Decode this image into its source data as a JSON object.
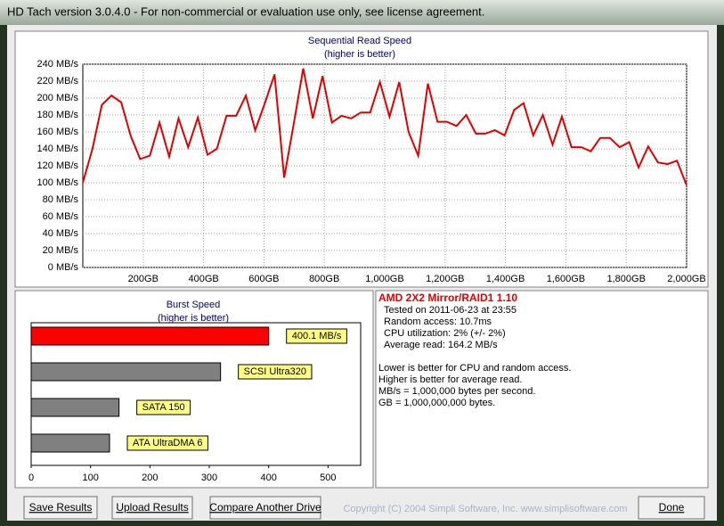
{
  "window_title": "HD Tach version 3.0.4.0  - For non-commercial or evaluation use only, see license agreement.",
  "chart_data": [
    {
      "type": "line",
      "title": "Sequential Read Speed",
      "subtitle": "(higher is better)",
      "color": "#e00000",
      "x": [
        0,
        32,
        63,
        95,
        127,
        159,
        190,
        222,
        254,
        286,
        317,
        349,
        381,
        413,
        444,
        476,
        508,
        540,
        571,
        603,
        635,
        667,
        698,
        730,
        762,
        794,
        825,
        857,
        889,
        921,
        952,
        984,
        1016,
        1048,
        1079,
        1111,
        1143,
        1175,
        1206,
        1238,
        1270,
        1302,
        1333,
        1365,
        1397,
        1429,
        1460,
        1492,
        1524,
        1556,
        1587,
        1619,
        1651,
        1683,
        1714,
        1746,
        1778,
        1810,
        1841,
        1873,
        1905,
        1937,
        1968,
        2000
      ],
      "values": [
        100,
        140,
        192,
        203,
        195,
        155,
        128,
        132,
        171,
        131,
        176,
        142,
        177,
        133,
        140,
        179,
        179,
        203,
        162,
        194,
        228,
        106,
        168,
        235,
        176,
        226,
        171,
        179,
        176,
        183,
        183,
        219,
        178,
        219,
        160,
        132,
        217,
        172,
        172,
        167,
        180,
        158,
        158,
        162,
        156,
        186,
        194,
        156,
        180,
        145,
        178,
        142,
        142,
        137,
        153,
        153,
        142,
        148,
        118,
        143,
        124,
        122,
        126,
        97
      ],
      "xlim": [
        0,
        2000
      ],
      "xticks": [
        {
          "value": 200,
          "label": "200GB"
        },
        {
          "value": 400,
          "label": "400GB"
        },
        {
          "value": 600,
          "label": "600GB"
        },
        {
          "value": 800,
          "label": "800GB"
        },
        {
          "value": 1000,
          "label": "1,000GB"
        },
        {
          "value": 1200,
          "label": "1,200GB"
        },
        {
          "value": 1400,
          "label": "1,400GB"
        },
        {
          "value": 1600,
          "label": "1,600GB"
        },
        {
          "value": 1800,
          "label": "1,800GB"
        },
        {
          "value": 2000,
          "label": "2,000GB"
        }
      ],
      "ylim": [
        0,
        240
      ],
      "yticks": [
        {
          "value": 0,
          "label": "0 MB/s"
        },
        {
          "value": 20,
          "label": "20 MB/s"
        },
        {
          "value": 40,
          "label": "40 MB/s"
        },
        {
          "value": 60,
          "label": "60 MB/s"
        },
        {
          "value": 80,
          "label": "80 MB/s"
        },
        {
          "value": 100,
          "label": "100 MB/s"
        },
        {
          "value": 120,
          "label": "120 MB/s"
        },
        {
          "value": 140,
          "label": "140 MB/s"
        },
        {
          "value": 160,
          "label": "160 MB/s"
        },
        {
          "value": 180,
          "label": "180 MB/s"
        },
        {
          "value": 200,
          "label": "200 MB/s"
        },
        {
          "value": 220,
          "label": "220 MB/s"
        },
        {
          "value": 240,
          "label": "240 MB/s"
        }
      ],
      "grid": true
    },
    {
      "type": "hbar",
      "title": "Burst Speed",
      "subtitle": "(higher is better)",
      "categories": [
        null,
        "SCSI Ultra320",
        "SATA 150",
        "ATA UltraDMA 6"
      ],
      "values": [
        400.1,
        319,
        148,
        132
      ],
      "value_labels": [
        "400.1 MB/s",
        null,
        null,
        null
      ],
      "colors": [
        "#ff0000",
        "#808080",
        "#808080",
        "#808080"
      ],
      "xlim": [
        0,
        552
      ],
      "xticks": [
        0,
        100,
        200,
        300,
        400,
        500
      ]
    }
  ],
  "info": {
    "heading": "AMD 2X2 Mirror/RAID1 1.10",
    "details": [
      "Tested on 2011-06-23 at 23:55",
      "Random access: 10.7ms",
      "CPU utilization: 2% (+/- 2%)",
      "Average read: 164.2 MB/s"
    ],
    "notes": [
      "Lower is better for CPU and random access.",
      "Higher is better for average read.",
      "MB/s = 1,000,000 bytes per second.",
      "GB = 1,000,000,000 bytes."
    ]
  },
  "buttons": [
    "Save Results",
    "Upload Results",
    "Compare Another Drive",
    "Done"
  ],
  "copyright": "Copyright (C) 2004 Simpli Software, Inc. www.simplisoftware.com"
}
